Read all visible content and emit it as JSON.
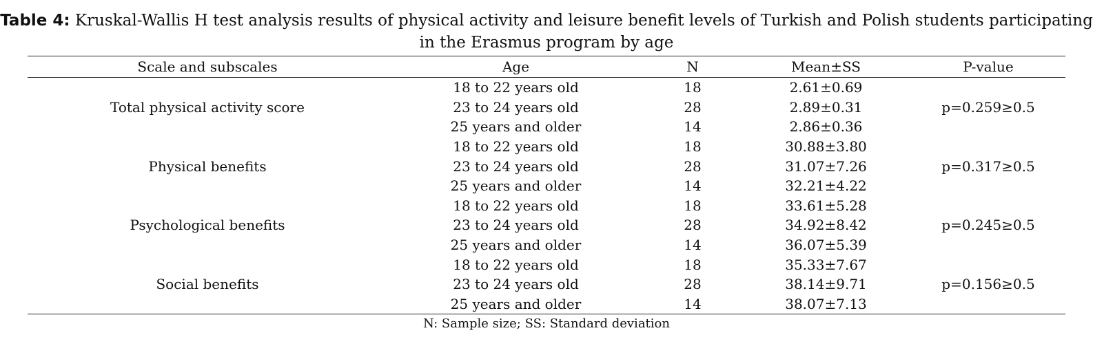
{
  "caption": {
    "label": "Table 4:",
    "text": " Kruskal-Wallis H test analysis results of physical activity and leisure benefit levels of Turkish and Polish students participating in the Erasmus program by age"
  },
  "table": {
    "headers": [
      "Scale and subscales",
      "Age",
      "N",
      "Mean±SS",
      "P-value"
    ],
    "groups": [
      {
        "scale": "Total physical activity score",
        "p_value": "p=0.259≥0.5",
        "rows": [
          {
            "age": "18 to 22 years old",
            "n": "18",
            "mean_ss": "2.61±0.69"
          },
          {
            "age": "23 to 24 years old",
            "n": "28",
            "mean_ss": "2.89±0.31"
          },
          {
            "age": "25 years and older",
            "n": "14",
            "mean_ss": "2.86±0.36"
          }
        ]
      },
      {
        "scale": "Physical benefits",
        "p_value": "p=0.317≥0.5",
        "rows": [
          {
            "age": "18 to 22 years old",
            "n": "18",
            "mean_ss": "30.88±3.80"
          },
          {
            "age": "23 to 24 years old",
            "n": "28",
            "mean_ss": "31.07±7.26"
          },
          {
            "age": "25 years and older",
            "n": "14",
            "mean_ss": "32.21±4.22"
          }
        ]
      },
      {
        "scale": "Psychological benefits",
        "p_value": "p=0.245≥0.5",
        "rows": [
          {
            "age": "18 to 22 years old",
            "n": "18",
            "mean_ss": "33.61±5.28"
          },
          {
            "age": "23 to 24 years old",
            "n": "28",
            "mean_ss": "34.92±8.42"
          },
          {
            "age": "25 years and older",
            "n": "14",
            "mean_ss": "36.07±5.39"
          }
        ]
      },
      {
        "scale": "Social benefits",
        "p_value": "p=0.156≥0.5",
        "rows": [
          {
            "age": "18 to 22 years old",
            "n": "18",
            "mean_ss": "35.33±7.67"
          },
          {
            "age": "23 to 24 years old",
            "n": "28",
            "mean_ss": "38.14±9.71"
          },
          {
            "age": "25 years and older",
            "n": "14",
            "mean_ss": "38.07±7.13"
          }
        ]
      }
    ]
  },
  "footnote": "N: Sample size; SS: Standard deviation"
}
